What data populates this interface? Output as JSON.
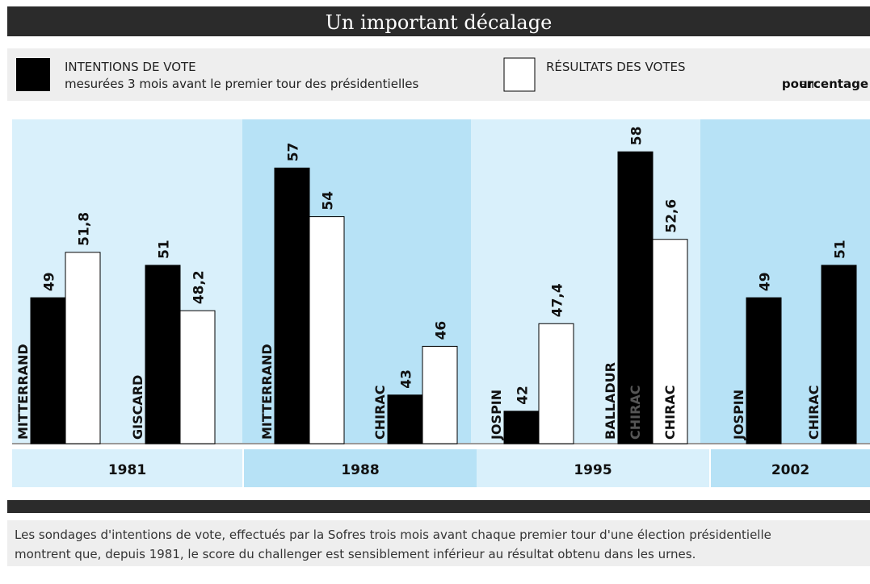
{
  "chart_data": {
    "type": "bar",
    "title": "Un important décalage",
    "unit": {
      "prefix": "en",
      "bold": "pourcentage"
    },
    "groups": [
      "1981",
      "1988",
      "1995",
      "2002"
    ],
    "categories": [
      "MITTERRAND",
      "GISCARD",
      "MITTERRAND",
      "CHIRAC",
      "JOSPIN",
      "BALLADUR",
      "JOSPIN",
      "CHIRAC"
    ],
    "ylim": [
      40,
      60
    ],
    "series": [
      {
        "name": "INTENTIONS DE VOTE",
        "subtitle": "mesurées 3 mois avant le premier tour des présidentielles",
        "color": "#000000",
        "values": [
          49,
          51,
          57,
          43,
          42,
          58,
          49,
          51
        ],
        "value_labels": [
          "49",
          "51",
          "57",
          "43",
          "42",
          "58",
          "49",
          "51"
        ],
        "labels": [
          null,
          null,
          null,
          null,
          null,
          "CHIRAC",
          null,
          null
        ]
      },
      {
        "name": "RÉSULTATS DES VOTES",
        "color": "#ffffff",
        "values": [
          51.8,
          48.2,
          54,
          46,
          47.4,
          52.6,
          null,
          null
        ],
        "value_labels": [
          "51,8",
          "48,2",
          "54",
          "46",
          "47,4",
          "52,6",
          null,
          null
        ],
        "labels": [
          null,
          null,
          null,
          null,
          null,
          "CHIRAC",
          null,
          null
        ]
      }
    ],
    "caption": [
      "Les sondages d'intentions de vote, effectués par la Sofres trois mois avant chaque premier tour d'une élection présidentielle",
      "montrent que, depuis 1981, le score du challenger est sensiblement inférieur au résultat  obtenu dans les urnes."
    ]
  }
}
